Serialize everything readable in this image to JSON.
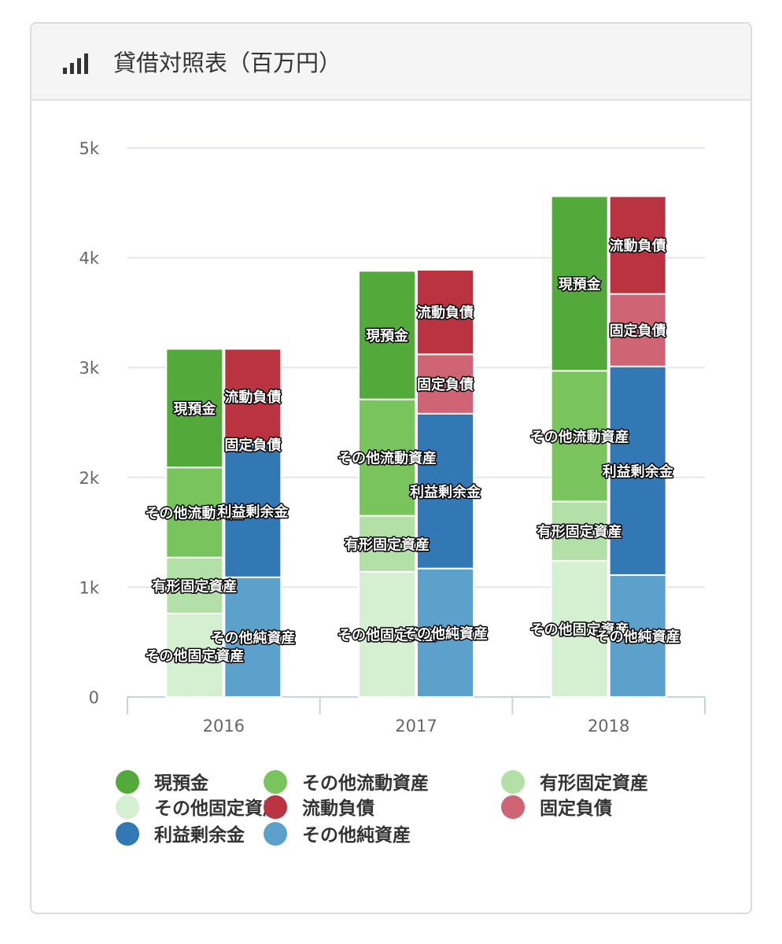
{
  "header": {
    "title": "貸借対照表（百万円）",
    "icon": "bar-chart-icon"
  },
  "chart_data": {
    "type": "bar",
    "stacked": true,
    "categories": [
      "2016",
      "2017",
      "2018"
    ],
    "ylim": [
      0,
      5000
    ],
    "yticks": [
      0,
      1000,
      2000,
      3000,
      4000,
      5000
    ],
    "ytick_labels": [
      "0",
      "1k",
      "2k",
      "3k",
      "4k",
      "5k"
    ],
    "grid": true,
    "legend_position": "bottom",
    "stacks": [
      {
        "stack": "assets",
        "series": [
          {
            "name": "その他固定資産",
            "color": "#d5efd1",
            "values": [
              760,
              1140,
              1240
            ]
          },
          {
            "name": "有形固定資産",
            "color": "#b3e0a6",
            "values": [
              510,
              510,
              540
            ]
          },
          {
            "name": "その他流動資産",
            "color": "#7ac45e",
            "values": [
              820,
              1060,
              1190
            ]
          },
          {
            "name": "現預金",
            "color": "#53a93a",
            "values": [
              1080,
              1170,
              1590
            ]
          }
        ]
      },
      {
        "stack": "liabilities",
        "series": [
          {
            "name": "その他純資産",
            "color": "#5ba1cb",
            "values": [
              1090,
              1170,
              1110
            ]
          },
          {
            "name": "利益剰余金",
            "color": "#3178b4",
            "values": [
              1210,
              1410,
              1900
            ]
          },
          {
            "name": "固定負債",
            "color": "#cf6574",
            "values": [
              0,
              540,
              660
            ]
          },
          {
            "name": "流動負債",
            "color": "#ba3340",
            "values": [
              870,
              770,
              890
            ]
          }
        ]
      }
    ],
    "legend": [
      {
        "name": "現預金",
        "color": "#53a93a"
      },
      {
        "name": "その他流動資産",
        "color": "#7ac45e"
      },
      {
        "name": "有形固定資産",
        "color": "#b3e0a6"
      },
      {
        "name": "その他固定資産",
        "color": "#d5efd1"
      },
      {
        "name": "流動負債",
        "color": "#ba3340"
      },
      {
        "name": "固定負債",
        "color": "#cf6574"
      },
      {
        "name": "利益剰余金",
        "color": "#3178b4"
      },
      {
        "name": "その他純資産",
        "color": "#5ba1cb"
      }
    ]
  }
}
